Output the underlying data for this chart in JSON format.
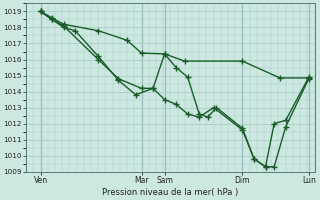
{
  "bg_color": "#cce8e0",
  "grid_color": "#aacccc",
  "line_color": "#1a5c2a",
  "line_width": 1.0,
  "marker": "+",
  "marker_size": 4,
  "marker_lw": 1.0,
  "xlabel_text": "Pression niveau de la mer( hPa )",
  "ylim": [
    1009,
    1019.5
  ],
  "yticks": [
    1009,
    1010,
    1011,
    1012,
    1013,
    1014,
    1015,
    1016,
    1017,
    1018,
    1019
  ],
  "xlim": [
    0,
    10.0
  ],
  "vlines": [
    0.5,
    4.0,
    4.8,
    7.5,
    9.8
  ],
  "xtick_positions": [
    0.5,
    4.0,
    4.8,
    7.5,
    9.8
  ],
  "xtick_labels": [
    "Ven",
    "Mar",
    "Sam",
    "Dim",
    "Lun"
  ],
  "series": [
    {
      "x": [
        0.5,
        0.9,
        1.3,
        2.5,
        3.5,
        4.0,
        4.8,
        5.5,
        7.5,
        8.8,
        9.8
      ],
      "y": [
        1019.0,
        1018.6,
        1018.2,
        1017.8,
        1017.2,
        1016.4,
        1016.35,
        1015.9,
        1015.9,
        1014.85,
        1014.85
      ]
    },
    {
      "x": [
        0.5,
        0.9,
        1.3,
        2.5,
        3.2,
        4.0,
        4.4,
        4.8,
        5.2,
        5.6,
        6.0,
        6.5,
        7.5,
        7.9,
        8.3,
        8.6,
        9.0,
        9.8
      ],
      "y": [
        1019.0,
        1018.5,
        1018.1,
        1016.0,
        1014.8,
        1014.2,
        1014.2,
        1013.5,
        1013.2,
        1012.6,
        1012.4,
        1013.0,
        1011.6,
        1009.8,
        1009.3,
        1009.3,
        1011.8,
        1014.8
      ]
    },
    {
      "x": [
        0.5,
        0.9,
        1.3,
        1.7,
        2.5,
        3.2,
        3.8,
        4.4,
        4.8,
        5.2,
        5.6,
        6.0,
        6.3,
        6.6,
        7.5,
        7.9,
        8.3,
        8.6,
        9.0,
        9.8
      ],
      "y": [
        1019.0,
        1018.5,
        1018.0,
        1017.8,
        1016.2,
        1014.7,
        1013.8,
        1014.2,
        1016.35,
        1015.5,
        1014.9,
        1012.6,
        1012.4,
        1013.0,
        1011.7,
        1009.8,
        1009.3,
        1012.0,
        1012.2,
        1014.9
      ]
    }
  ]
}
